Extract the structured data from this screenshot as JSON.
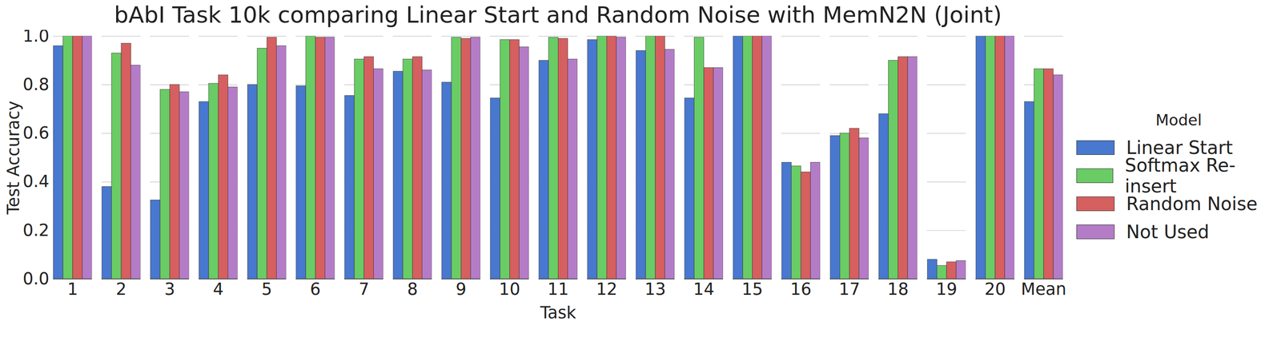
{
  "chart_data": {
    "type": "bar",
    "title": "bAbI Task 10k comparing Linear Start and Random Noise with MemN2N (Joint)",
    "x_label": "Task",
    "y_label": "Test Accuracy",
    "legend_title": "Model",
    "legend": "right",
    "grid": true,
    "categories": [
      "1",
      "2",
      "3",
      "4",
      "5",
      "6",
      "7",
      "8",
      "9",
      "10",
      "11",
      "12",
      "13",
      "14",
      "15",
      "16",
      "17",
      "18",
      "19",
      "20",
      "Mean"
    ],
    "series": [
      {
        "name": "Linear Start",
        "color": "#4878CF",
        "values": [
          0.96,
          0.38,
          0.325,
          0.73,
          0.8,
          0.795,
          0.755,
          0.855,
          0.81,
          0.745,
          0.9,
          0.985,
          0.94,
          0.745,
          1.0,
          0.48,
          0.59,
          0.68,
          0.08,
          1.0,
          0.73
        ]
      },
      {
        "name": "Softmax Re-insert",
        "color": "#6ACC65",
        "values": [
          1.0,
          0.93,
          0.78,
          0.805,
          0.95,
          1.0,
          0.905,
          0.905,
          0.995,
          0.985,
          0.995,
          1.0,
          1.0,
          0.995,
          1.0,
          0.465,
          0.6,
          0.9,
          0.055,
          1.0,
          0.865
        ]
      },
      {
        "name": "Random Noise",
        "color": "#D65F5F",
        "values": [
          1.0,
          0.97,
          0.8,
          0.84,
          0.995,
          0.995,
          0.915,
          0.915,
          0.99,
          0.985,
          0.99,
          1.0,
          1.0,
          0.87,
          1.0,
          0.44,
          0.62,
          0.915,
          0.07,
          1.0,
          0.865
        ]
      },
      {
        "name": "Not Used",
        "color": "#B47CC7",
        "values": [
          1.0,
          0.88,
          0.77,
          0.79,
          0.96,
          0.995,
          0.865,
          0.86,
          0.995,
          0.955,
          0.905,
          0.995,
          0.945,
          0.87,
          1.0,
          0.48,
          0.58,
          0.915,
          0.075,
          1.0,
          0.84
        ]
      }
    ],
    "ylim": [
      0,
      1.0
    ],
    "yticks": [
      {
        "value": 0,
        "label": "0.0"
      },
      {
        "value": 0.2,
        "label": "0.2"
      },
      {
        "value": 0.4,
        "label": "0.4"
      },
      {
        "value": 0.6,
        "label": "0.6"
      },
      {
        "value": 0.8,
        "label": "0.8"
      },
      {
        "value": 1.0,
        "label": "1.0"
      }
    ]
  }
}
